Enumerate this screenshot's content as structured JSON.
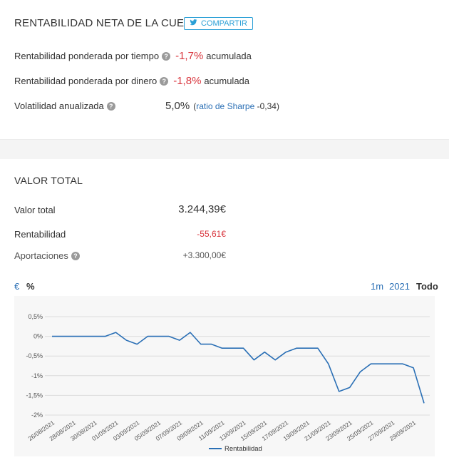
{
  "net": {
    "title": "RENTABILIDAD NETA DE LA CUENTA",
    "share_label": "COMPARTIR",
    "twr_label": "Rentabilidad ponderada por tiempo",
    "twr_value": "-1,7%",
    "twr_suffix": "acumulada",
    "mwr_label": "Rentabilidad ponderada por dinero",
    "mwr_value": "-1,8%",
    "mwr_suffix": "acumulada",
    "vol_label": "Volatilidad anualizada",
    "vol_value": "5,0%",
    "sharpe_open": "(",
    "sharpe_link": "ratio de Sharpe",
    "sharpe_value": "-0,34)"
  },
  "total": {
    "title": "VALOR TOTAL",
    "valor_label": "Valor total",
    "valor_value": "3.244,39€",
    "rent_label": "Rentabilidad",
    "rent_value": "-55,61€",
    "aport_label": "Aportaciones",
    "aport_value": "+3.300,00€"
  },
  "toggles": {
    "euro": "€",
    "percent": "%",
    "r1m": "1m",
    "r2021": "2021",
    "rall": "Todo"
  },
  "colors": {
    "negative": "#d9363e",
    "link": "#2a6fb5",
    "line": "#2a6fb5",
    "share": "#2a9fd6"
  },
  "icons": {
    "share": "twitter-icon",
    "help": "help-icon"
  },
  "chart_data": {
    "type": "line",
    "x": [
      "26/08/2021",
      "27/08/2021",
      "28/08/2021",
      "29/08/2021",
      "30/08/2021",
      "31/08/2021",
      "01/09/2021",
      "02/09/2021",
      "03/09/2021",
      "04/09/2021",
      "05/09/2021",
      "06/09/2021",
      "07/09/2021",
      "08/09/2021",
      "09/09/2021",
      "10/09/2021",
      "11/09/2021",
      "12/09/2021",
      "13/09/2021",
      "14/09/2021",
      "15/09/2021",
      "16/09/2021",
      "17/09/2021",
      "18/09/2021",
      "19/09/2021",
      "20/09/2021",
      "21/09/2021",
      "22/09/2021",
      "23/09/2021",
      "24/09/2021",
      "25/09/2021",
      "26/09/2021",
      "27/09/2021",
      "28/09/2021",
      "29/09/2021",
      "30/09/2021"
    ],
    "tick_labels": [
      "26/08/2021",
      "28/08/2021",
      "30/08/2021",
      "01/09/2021",
      "03/09/2021",
      "05/09/2021",
      "07/09/2021",
      "09/09/2021",
      "11/09/2021",
      "13/09/2021",
      "15/09/2021",
      "17/09/2021",
      "19/09/2021",
      "21/09/2021",
      "23/09/2021",
      "25/09/2021",
      "27/09/2021",
      "29/09/2021"
    ],
    "series": [
      {
        "name": "Rentabilidad",
        "values": [
          0,
          0,
          0,
          0,
          0,
          0,
          0.1,
          -0.1,
          -0.2,
          0,
          0,
          0,
          -0.1,
          0.1,
          -0.2,
          -0.2,
          -0.3,
          -0.3,
          -0.3,
          -0.6,
          -0.4,
          -0.6,
          -0.4,
          -0.3,
          -0.3,
          -0.3,
          -0.7,
          -1.4,
          -1.3,
          -0.9,
          -0.7,
          -0.7,
          -0.7,
          -0.7,
          -0.8,
          -1.7
        ]
      }
    ],
    "yticks": [
      "0,5%",
      "0%",
      "-0,5%",
      "-1%",
      "-1,5%",
      "-2%"
    ],
    "ytick_values": [
      0.5,
      0,
      -0.5,
      -1,
      -1.5,
      -2
    ],
    "ylim": [
      -2,
      0.5
    ],
    "grid": true,
    "legend": "bottom-center"
  }
}
